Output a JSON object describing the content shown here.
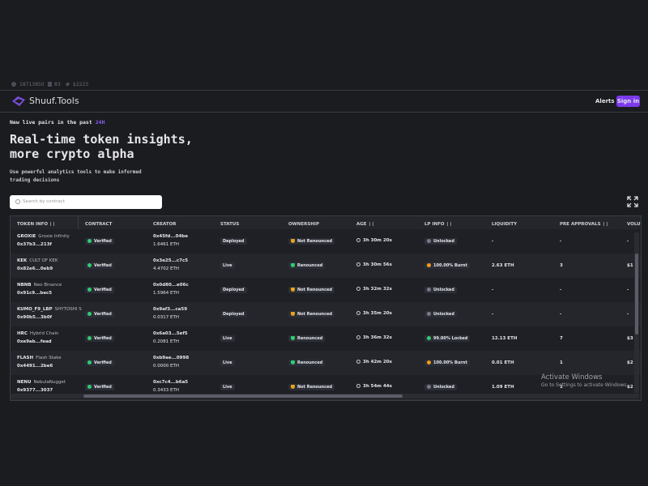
{
  "stats": [
    "18713850",
    "83",
    "$2223"
  ],
  "header": {
    "logo": "Shuuf.Tools",
    "alerts": "Alerts",
    "sign_in": "Sign in"
  },
  "hero": {
    "eyebrow": "New live pairs in the past",
    "eyebrow_highlight": "24H",
    "title_lines": [
      "Real-time token insights,",
      "more crypto alpha"
    ],
    "subtitle_lines": [
      "Use powerful analytics tools to make informed",
      "trading decisions"
    ]
  },
  "search": {
    "placeholder": "Search by contract"
  },
  "table": {
    "columns": [
      "TOKEN INFO",
      "CONTRACT",
      "CREATOR",
      "STATUS",
      "OWNERSHIP",
      "AGE",
      "LP INFO",
      "LIQUIDITY",
      "PRE APPROVALS",
      "VOLU"
    ],
    "rows": [
      {
        "symbol": "GROXIE",
        "name": "Groxie Infinity",
        "address": "0x37b3...213f",
        "contract": "Verified",
        "creator": "0x45fd...04be",
        "creator_balance": "1.6461 ETH",
        "status": "Deployed",
        "ownership": "Not Renounced",
        "ownership_color": "#e8a317",
        "age": "3h 30m 20s",
        "lp_info": "Unlocked",
        "lp_color": "#777b86",
        "liquidity": "-",
        "pre_approvals": "-",
        "volume": "-"
      },
      {
        "symbol": "KEK",
        "name": "CULT OF KEK",
        "address": "0x82e6...0eb9",
        "contract": "Verified",
        "creator": "0x3e25...c7c5",
        "creator_balance": "4.4702 ETH",
        "status": "Live",
        "ownership": "Renounced",
        "ownership_color": "#2ecc71",
        "age": "3h 30m 56s",
        "lp_info": "100.00% Burnt",
        "lp_color": "#f39c12",
        "liquidity": "2.63 ETH",
        "pre_approvals": "3",
        "volume": "$1"
      },
      {
        "symbol": "NBNB",
        "name": "Neo Binance",
        "address": "0x91c9...bec5",
        "contract": "Verified",
        "creator": "0x0d80...e06c",
        "creator_balance": "1.5964 ETH",
        "status": "Deployed",
        "ownership": "Not Renounced",
        "ownership_color": "#e8a317",
        "age": "3h 32m 32s",
        "lp_info": "Unlocked",
        "lp_color": "#777b86",
        "liquidity": "-",
        "pre_approvals": "-",
        "volume": "-"
      },
      {
        "symbol": "KUMO_F9_LBP",
        "name": "SHYTOSHI SM",
        "address": "0x90b5...3b0f",
        "contract": "Verified",
        "creator": "0x9af3...ca59",
        "creator_balance": "0.0317 ETH",
        "status": "Deployed",
        "ownership": "Not Renounced",
        "ownership_color": "#e8a317",
        "age": "3h 35m 20s",
        "lp_info": "Unlocked",
        "lp_color": "#777b86",
        "liquidity": "-",
        "pre_approvals": "-",
        "volume": "-"
      },
      {
        "symbol": "HRC",
        "name": "Hybrid Chain",
        "address": "0xe9ab...fead",
        "contract": "Verified",
        "creator": "0x6a03...5ef5",
        "creator_balance": "0.2081 ETH",
        "status": "Live",
        "ownership": "Renounced",
        "ownership_color": "#2ecc71",
        "age": "3h 36m 32s",
        "lp_info": "99.00% Locked",
        "lp_color": "#2ecc71",
        "liquidity": "12.13 ETH",
        "pre_approvals": "7",
        "volume": "$3"
      },
      {
        "symbol": "FLASH",
        "name": "Flash Stake",
        "address": "0x4491...2be6",
        "contract": "Verified",
        "creator": "0xb9ae...0998",
        "creator_balance": "0.0000 ETH",
        "status": "Live",
        "ownership": "Renounced",
        "ownership_color": "#2ecc71",
        "age": "3h 42m 20s",
        "lp_info": "100.00% Burnt",
        "lp_color": "#f39c12",
        "liquidity": "0.01 ETH",
        "pre_approvals": "1",
        "volume": "$2"
      },
      {
        "symbol": "NENU",
        "name": "NebulaNugget",
        "address": "0x9377...3037",
        "contract": "Verified",
        "creator": "0xc7c4...b6a5",
        "creator_balance": "0.3433 ETH",
        "status": "Live",
        "ownership": "Not Renounced",
        "ownership_color": "#e8a317",
        "age": "3h 54m 44s",
        "lp_info": "Unlocked",
        "lp_color": "#777b86",
        "liquidity": "1.09 ETH",
        "pre_approvals": "1",
        "volume": "$2"
      }
    ]
  },
  "watermark": {
    "title": "Activate Windows",
    "subtitle": "Go to Settings to activate Windows."
  }
}
